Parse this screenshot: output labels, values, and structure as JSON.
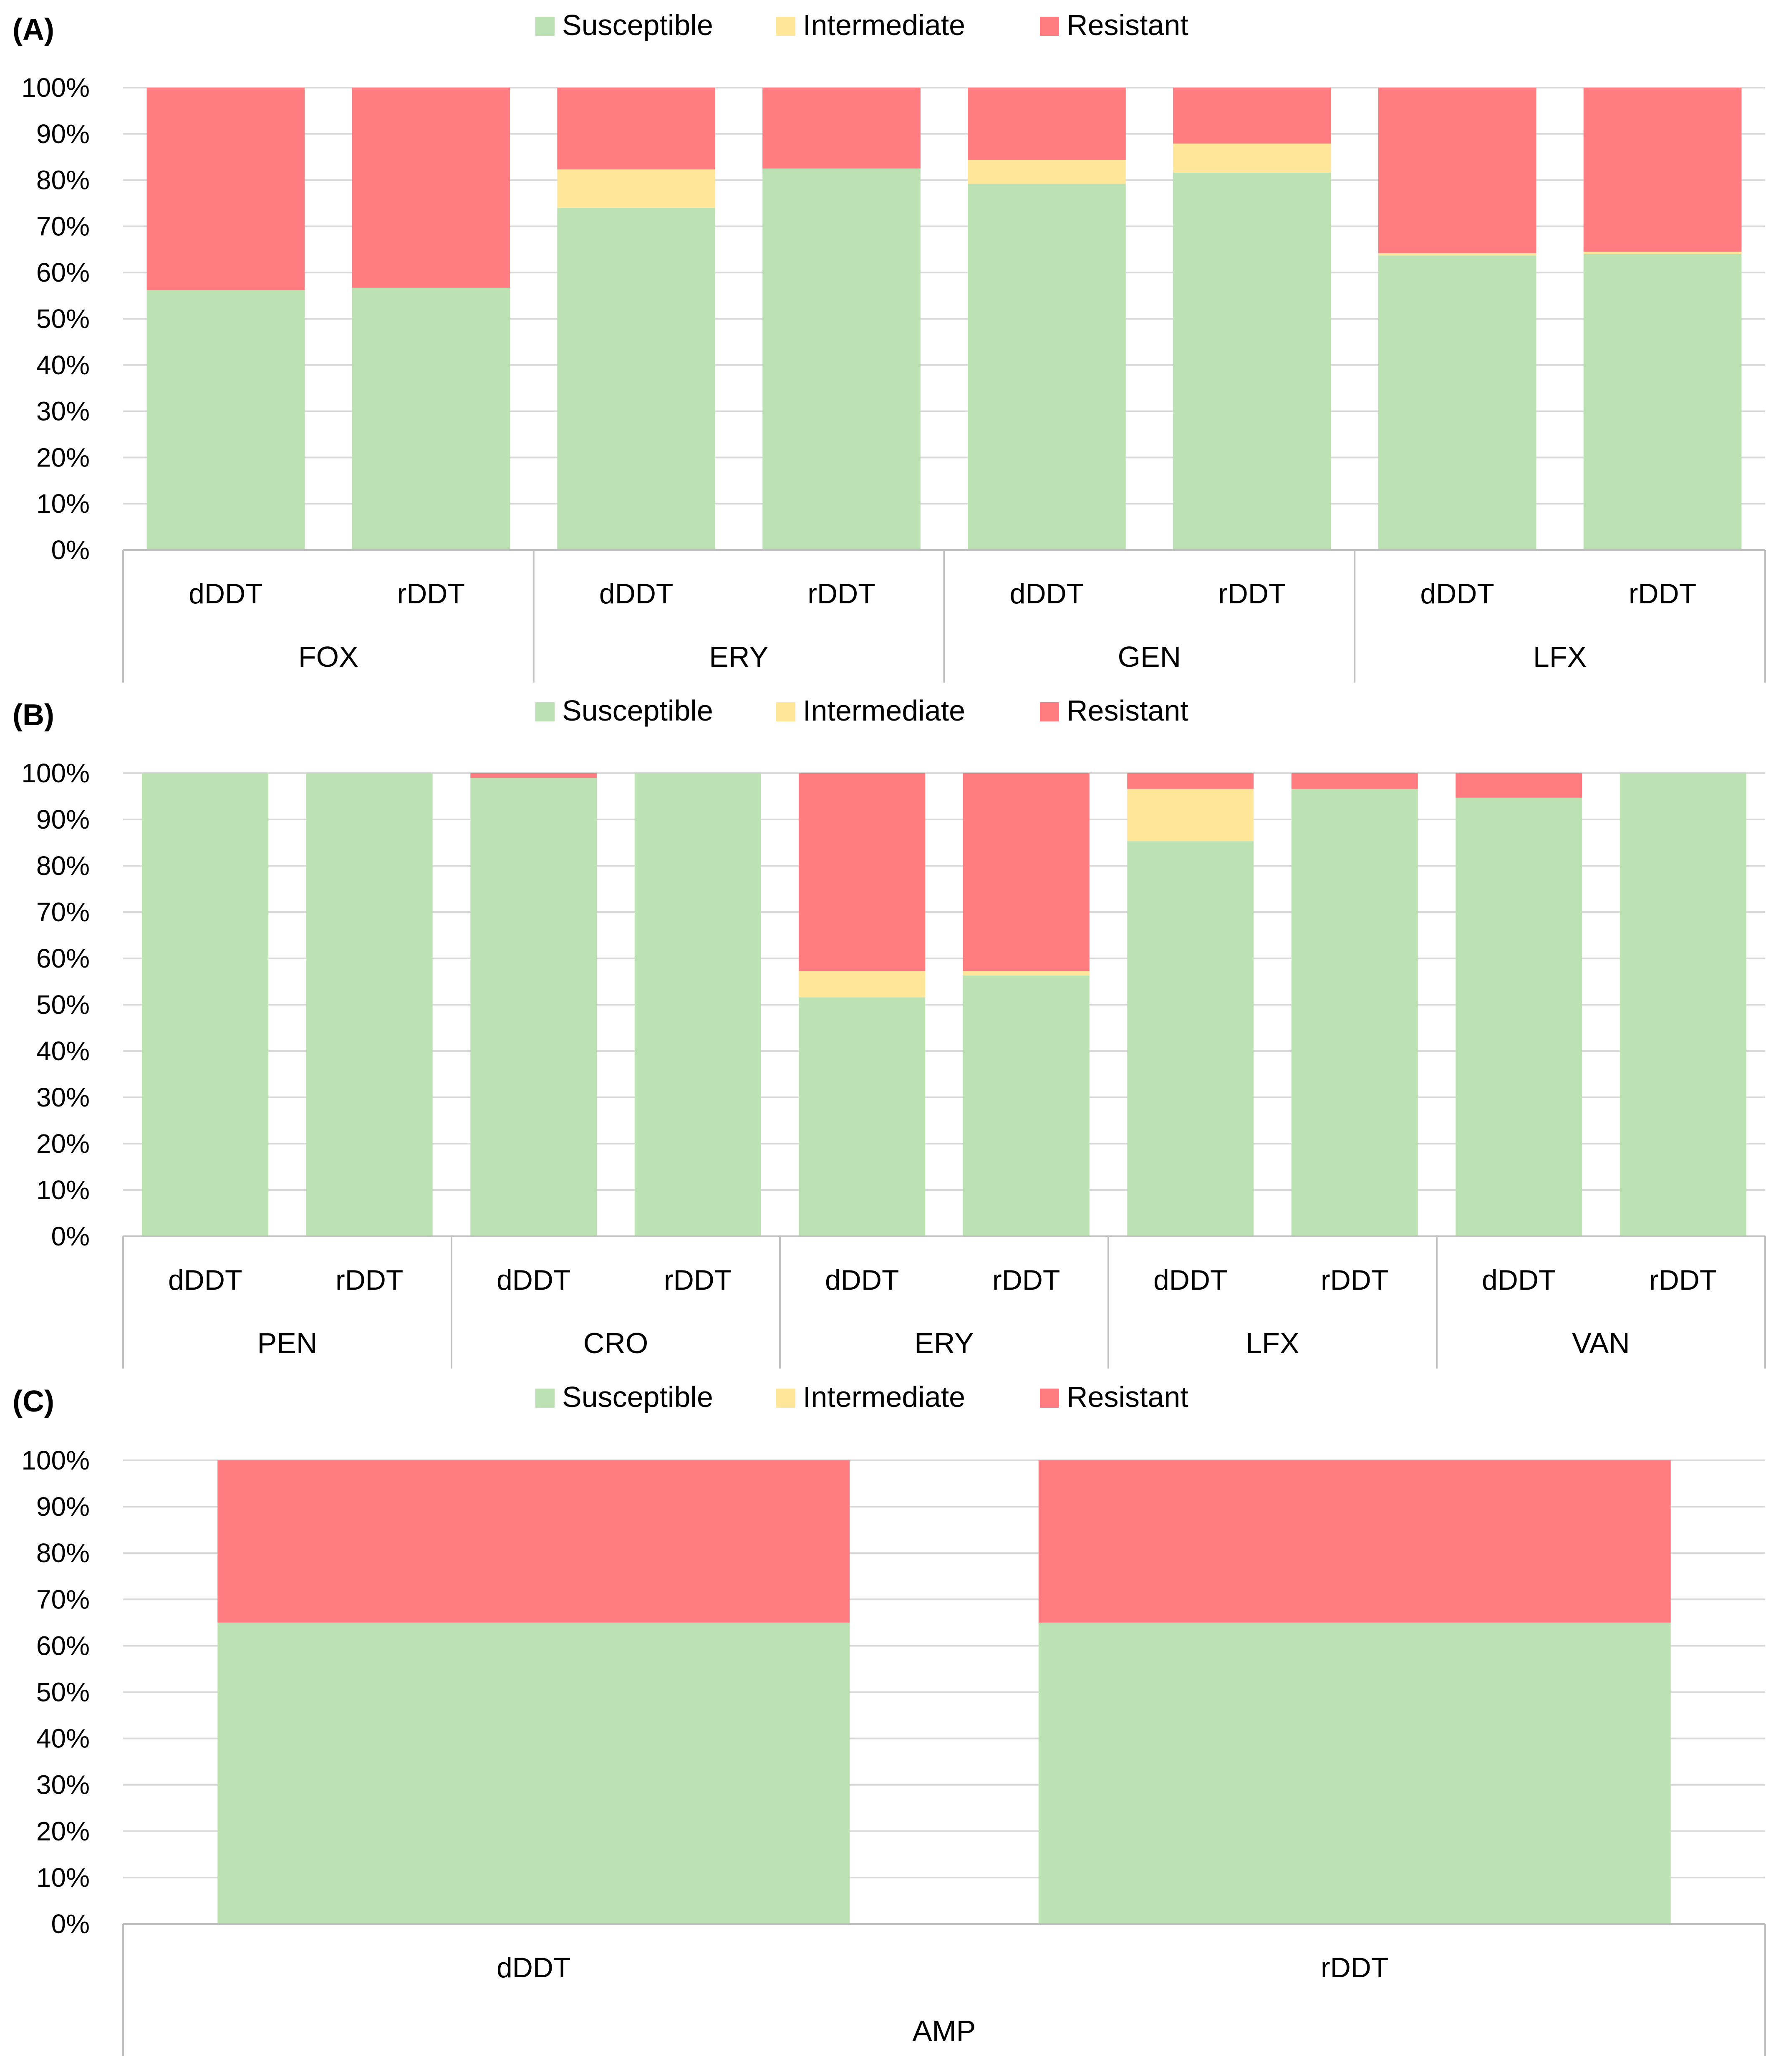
{
  "colors": {
    "susceptible": "#BCE2B4",
    "intermediate": "#FFE699",
    "resistant": "#FF7C80",
    "grid": "#D9D9D9",
    "frame": "#BFBFBF"
  },
  "chart_data": [
    {
      "type": "bar",
      "stacked": true,
      "panel": "(A)",
      "legend": [
        "Susceptible",
        "Intermediate",
        "Resistant"
      ],
      "legend_position": "top-center",
      "y_ticks": [
        "0%",
        "10%",
        "20%",
        "30%",
        "40%",
        "50%",
        "60%",
        "70%",
        "80%",
        "90%",
        "100%"
      ],
      "ylim": [
        0,
        100
      ],
      "grid": true,
      "groups": [
        {
          "name": "FOX",
          "bars": [
            {
              "label": "dDDT",
              "susceptible": 56.2,
              "intermediate": 0,
              "resistant": 43.8
            },
            {
              "label": "rDDT",
              "susceptible": 56.7,
              "intermediate": 0,
              "resistant": 43.3
            }
          ]
        },
        {
          "name": "ERY",
          "bars": [
            {
              "label": "dDDT",
              "susceptible": 74,
              "intermediate": 8.3,
              "resistant": 17.7
            },
            {
              "label": "rDDT",
              "susceptible": 82.5,
              "intermediate": 0,
              "resistant": 17.5
            }
          ]
        },
        {
          "name": "GEN",
          "bars": [
            {
              "label": "dDDT",
              "susceptible": 79.2,
              "intermediate": 5.1,
              "resistant": 15.7
            },
            {
              "label": "rDDT",
              "susceptible": 81.6,
              "intermediate": 6.3,
              "resistant": 12.1
            }
          ]
        },
        {
          "name": "LFX",
          "bars": [
            {
              "label": "dDDT",
              "susceptible": 63.7,
              "intermediate": 0.5,
              "resistant": 35.8
            },
            {
              "label": "rDDT",
              "susceptible": 64,
              "intermediate": 0.5,
              "resistant": 35.5
            }
          ]
        }
      ]
    },
    {
      "type": "bar",
      "stacked": true,
      "panel": "(B)",
      "legend": [
        "Susceptible",
        "Intermediate",
        "Resistant"
      ],
      "legend_position": "top-center",
      "y_ticks": [
        "0%",
        "10%",
        "20%",
        "30%",
        "40%",
        "50%",
        "60%",
        "70%",
        "80%",
        "90%",
        "100%"
      ],
      "ylim": [
        0,
        100
      ],
      "grid": true,
      "groups": [
        {
          "name": "PEN",
          "bars": [
            {
              "label": "dDDT",
              "susceptible": 100,
              "intermediate": 0,
              "resistant": 0
            },
            {
              "label": "rDDT",
              "susceptible": 100,
              "intermediate": 0,
              "resistant": 0
            }
          ]
        },
        {
          "name": "CRO",
          "bars": [
            {
              "label": "dDDT",
              "susceptible": 99,
              "intermediate": 0,
              "resistant": 1
            },
            {
              "label": "rDDT",
              "susceptible": 100,
              "intermediate": 0,
              "resistant": 0
            }
          ]
        },
        {
          "name": "ERY",
          "bars": [
            {
              "label": "dDDT",
              "susceptible": 51.6,
              "intermediate": 5.7,
              "resistant": 42.7
            },
            {
              "label": "rDDT",
              "susceptible": 56.3,
              "intermediate": 1,
              "resistant": 42.7
            }
          ]
        },
        {
          "name": "LFX",
          "bars": [
            {
              "label": "dDDT",
              "susceptible": 85.3,
              "intermediate": 11.3,
              "resistant": 3.4
            },
            {
              "label": "rDDT",
              "susceptible": 96.6,
              "intermediate": 0,
              "resistant": 3.4
            }
          ]
        },
        {
          "name": "VAN",
          "bars": [
            {
              "label": "dDDT",
              "susceptible": 94.7,
              "intermediate": 0,
              "resistant": 5.3
            },
            {
              "label": "rDDT",
              "susceptible": 100,
              "intermediate": 0,
              "resistant": 0
            }
          ]
        }
      ]
    },
    {
      "type": "bar",
      "stacked": true,
      "panel": "(C)",
      "legend": [
        "Susceptible",
        "Intermediate",
        "Resistant"
      ],
      "legend_position": "top-center",
      "y_ticks": [
        "0%",
        "10%",
        "20%",
        "30%",
        "40%",
        "50%",
        "60%",
        "70%",
        "80%",
        "90%",
        "100%"
      ],
      "ylim": [
        0,
        100
      ],
      "grid": true,
      "groups": [
        {
          "name": "AMP",
          "bars": [
            {
              "label": "dDDT",
              "susceptible": 65,
              "intermediate": 0,
              "resistant": 35
            },
            {
              "label": "rDDT",
              "susceptible": 65,
              "intermediate": 0,
              "resistant": 35
            }
          ]
        }
      ]
    }
  ]
}
